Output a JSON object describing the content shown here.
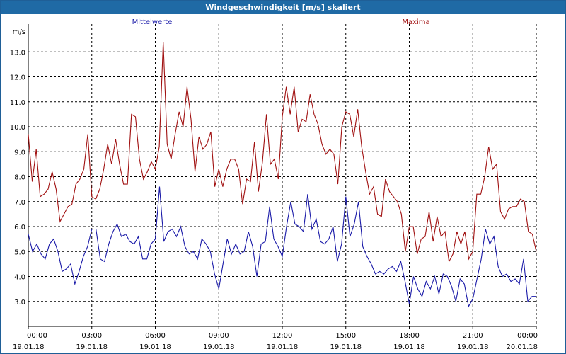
{
  "window": {
    "title": "Windgeschwindigkeit [m/s] skaliert"
  },
  "colors": {
    "mittelwerte": "#1a1aa8",
    "maxima": "#a01010",
    "titlebar": "#1f6aa5"
  },
  "chart_data": {
    "type": "line",
    "title": "Windgeschwindigkeit [m/s] skaliert",
    "ylabel": "m/s",
    "ylim": [
      2.0,
      14.0
    ],
    "y_ticks": [
      "3.0",
      "4.0",
      "5.0",
      "6.0",
      "7.0",
      "8.0",
      "9.0",
      "10.0",
      "11.0",
      "12.0",
      "13.0"
    ],
    "x_ticks": [
      {
        "time": "00:00",
        "date": "19.01.18"
      },
      {
        "time": "03:00",
        "date": "19.01.18"
      },
      {
        "time": "06:00",
        "date": "19.01.18"
      },
      {
        "time": "09:00",
        "date": "19.01.18"
      },
      {
        "time": "12:00",
        "date": "19.01.18"
      },
      {
        "time": "15:00",
        "date": "19.01.18"
      },
      {
        "time": "18:00",
        "date": "19.01.18"
      },
      {
        "time": "21:00",
        "date": "19.01.18"
      },
      {
        "time": "00:00",
        "date": "20.01.18"
      }
    ],
    "grid": true,
    "x_unit": "hours",
    "series": [
      {
        "name": "Mittelwerte",
        "points": [
          [
            0,
            5.7
          ],
          [
            0.2,
            5.0
          ],
          [
            0.4,
            5.3
          ],
          [
            0.6,
            4.9
          ],
          [
            0.8,
            4.7
          ],
          [
            1.0,
            5.3
          ],
          [
            1.2,
            5.5
          ],
          [
            1.4,
            5.0
          ],
          [
            1.6,
            4.2
          ],
          [
            1.8,
            4.3
          ],
          [
            2.0,
            4.5
          ],
          [
            2.2,
            3.7
          ],
          [
            2.4,
            4.2
          ],
          [
            2.6,
            4.8
          ],
          [
            2.8,
            5.2
          ],
          [
            3.0,
            5.9
          ],
          [
            3.2,
            5.9
          ],
          [
            3.4,
            4.7
          ],
          [
            3.6,
            4.6
          ],
          [
            3.8,
            5.3
          ],
          [
            4.0,
            5.8
          ],
          [
            4.2,
            6.1
          ],
          [
            4.4,
            5.6
          ],
          [
            4.6,
            5.7
          ],
          [
            4.8,
            5.4
          ],
          [
            5.0,
            5.3
          ],
          [
            5.2,
            5.6
          ],
          [
            5.4,
            4.7
          ],
          [
            5.6,
            4.7
          ],
          [
            5.8,
            5.3
          ],
          [
            6.0,
            5.5
          ],
          [
            6.2,
            7.6
          ],
          [
            6.4,
            5.4
          ],
          [
            6.6,
            5.8
          ],
          [
            6.8,
            5.9
          ],
          [
            7.0,
            5.6
          ],
          [
            7.2,
            6.0
          ],
          [
            7.4,
            5.2
          ],
          [
            7.6,
            4.9
          ],
          [
            7.8,
            5.0
          ],
          [
            8.0,
            4.7
          ],
          [
            8.2,
            5.5
          ],
          [
            8.4,
            5.3
          ],
          [
            8.6,
            5.0
          ],
          [
            8.8,
            4.1
          ],
          [
            9.0,
            3.5
          ],
          [
            9.2,
            4.5
          ],
          [
            9.4,
            5.5
          ],
          [
            9.6,
            4.9
          ],
          [
            9.8,
            5.3
          ],
          [
            10.0,
            4.9
          ],
          [
            10.2,
            5.0
          ],
          [
            10.4,
            5.8
          ],
          [
            10.6,
            5.2
          ],
          [
            10.8,
            4.0
          ],
          [
            11.0,
            5.3
          ],
          [
            11.2,
            5.4
          ],
          [
            11.4,
            6.8
          ],
          [
            11.6,
            5.5
          ],
          [
            11.8,
            5.2
          ],
          [
            12.0,
            4.8
          ],
          [
            12.2,
            6.0
          ],
          [
            12.4,
            7.0
          ],
          [
            12.6,
            6.1
          ],
          [
            12.8,
            6.0
          ],
          [
            13.0,
            5.8
          ],
          [
            13.2,
            7.3
          ],
          [
            13.4,
            5.9
          ],
          [
            13.6,
            6.3
          ],
          [
            13.8,
            5.4
          ],
          [
            14.0,
            5.3
          ],
          [
            14.2,
            5.5
          ],
          [
            14.4,
            6.0
          ],
          [
            14.6,
            4.6
          ],
          [
            14.8,
            5.3
          ],
          [
            15.0,
            7.2
          ],
          [
            15.2,
            5.6
          ],
          [
            15.4,
            6.1
          ],
          [
            15.6,
            7.0
          ],
          [
            15.8,
            5.2
          ],
          [
            16.0,
            4.8
          ],
          [
            16.2,
            4.5
          ],
          [
            16.4,
            4.1
          ],
          [
            16.6,
            4.2
          ],
          [
            16.8,
            4.1
          ],
          [
            17.0,
            4.3
          ],
          [
            17.2,
            4.4
          ],
          [
            17.4,
            4.2
          ],
          [
            17.6,
            4.6
          ],
          [
            17.8,
            3.8
          ],
          [
            18.0,
            2.9
          ],
          [
            18.2,
            4.0
          ],
          [
            18.4,
            3.5
          ],
          [
            18.6,
            3.2
          ],
          [
            18.8,
            3.8
          ],
          [
            19.0,
            3.5
          ],
          [
            19.2,
            4.0
          ],
          [
            19.4,
            3.3
          ],
          [
            19.6,
            4.1
          ],
          [
            19.8,
            4.0
          ],
          [
            20.0,
            3.6
          ],
          [
            20.2,
            3.0
          ],
          [
            20.4,
            3.9
          ],
          [
            20.6,
            3.7
          ],
          [
            20.8,
            2.8
          ],
          [
            21.0,
            3.1
          ],
          [
            21.2,
            3.9
          ],
          [
            21.4,
            4.7
          ],
          [
            21.6,
            5.9
          ],
          [
            21.8,
            5.3
          ],
          [
            22.0,
            5.6
          ],
          [
            22.2,
            4.4
          ],
          [
            22.4,
            4.0
          ],
          [
            22.6,
            4.1
          ],
          [
            22.8,
            3.8
          ],
          [
            23.0,
            3.9
          ],
          [
            23.2,
            3.7
          ],
          [
            23.4,
            4.7
          ],
          [
            23.6,
            3.0
          ],
          [
            23.8,
            3.2
          ],
          [
            24.0,
            3.2
          ]
        ]
      },
      {
        "name": "Maxima",
        "points": [
          [
            0,
            9.7
          ],
          [
            0.2,
            7.8
          ],
          [
            0.4,
            9.1
          ],
          [
            0.6,
            7.2
          ],
          [
            0.8,
            7.3
          ],
          [
            1.0,
            7.5
          ],
          [
            1.2,
            8.2
          ],
          [
            1.4,
            7.5
          ],
          [
            1.6,
            6.2
          ],
          [
            1.8,
            6.5
          ],
          [
            2.0,
            6.8
          ],
          [
            2.2,
            6.9
          ],
          [
            2.4,
            7.7
          ],
          [
            2.6,
            7.9
          ],
          [
            2.8,
            8.3
          ],
          [
            3.0,
            9.7
          ],
          [
            3.2,
            7.2
          ],
          [
            3.4,
            7.1
          ],
          [
            3.6,
            7.5
          ],
          [
            3.8,
            8.3
          ],
          [
            4.0,
            9.3
          ],
          [
            4.2,
            8.5
          ],
          [
            4.4,
            9.5
          ],
          [
            4.6,
            8.5
          ],
          [
            4.8,
            7.7
          ],
          [
            5.0,
            7.7
          ],
          [
            5.2,
            10.5
          ],
          [
            5.4,
            10.4
          ],
          [
            5.6,
            8.7
          ],
          [
            5.8,
            7.9
          ],
          [
            6.0,
            8.2
          ],
          [
            6.2,
            8.6
          ],
          [
            6.4,
            8.3
          ],
          [
            6.6,
            9.2
          ],
          [
            6.8,
            13.4
          ],
          [
            7.0,
            9.3
          ],
          [
            7.2,
            8.7
          ],
          [
            7.4,
            9.7
          ],
          [
            7.6,
            10.6
          ],
          [
            7.8,
            10.0
          ],
          [
            8.0,
            11.6
          ],
          [
            8.2,
            10.3
          ],
          [
            8.4,
            8.2
          ],
          [
            8.6,
            9.6
          ],
          [
            8.8,
            9.1
          ],
          [
            9.0,
            9.3
          ],
          [
            9.2,
            9.8
          ],
          [
            9.4,
            7.6
          ],
          [
            9.6,
            8.3
          ],
          [
            9.8,
            7.6
          ],
          [
            10.0,
            8.3
          ],
          [
            10.2,
            8.7
          ],
          [
            10.4,
            8.7
          ],
          [
            10.6,
            8.3
          ],
          [
            10.8,
            6.9
          ],
          [
            11.0,
            7.9
          ],
          [
            11.2,
            7.8
          ],
          [
            11.4,
            9.4
          ],
          [
            11.6,
            7.4
          ],
          [
            11.8,
            8.6
          ],
          [
            12.0,
            10.5
          ],
          [
            12.2,
            8.5
          ],
          [
            12.4,
            8.7
          ],
          [
            12.6,
            7.9
          ],
          [
            12.8,
            10.4
          ],
          [
            13.0,
            11.6
          ],
          [
            13.2,
            10.5
          ],
          [
            13.4,
            11.6
          ],
          [
            13.6,
            9.8
          ],
          [
            13.8,
            10.3
          ],
          [
            14.0,
            10.2
          ],
          [
            14.2,
            11.3
          ],
          [
            14.4,
            10.5
          ],
          [
            14.6,
            10.1
          ],
          [
            14.8,
            9.3
          ],
          [
            15.0,
            8.9
          ],
          [
            15.2,
            9.1
          ],
          [
            15.4,
            8.9
          ],
          [
            15.6,
            7.7
          ],
          [
            15.8,
            10.0
          ],
          [
            16.0,
            10.6
          ],
          [
            16.2,
            10.5
          ],
          [
            16.4,
            9.6
          ],
          [
            16.6,
            10.7
          ],
          [
            16.8,
            9.2
          ],
          [
            17.0,
            8.2
          ],
          [
            17.2,
            7.3
          ],
          [
            17.4,
            7.6
          ],
          [
            17.6,
            6.5
          ],
          [
            17.8,
            6.4
          ],
          [
            18.0,
            7.9
          ],
          [
            18.2,
            7.4
          ],
          [
            18.4,
            7.2
          ],
          [
            18.6,
            7.0
          ],
          [
            18.8,
            6.5
          ],
          [
            19.0,
            5.0
          ],
          [
            19.2,
            6.0
          ],
          [
            19.4,
            6.0
          ],
          [
            19.6,
            4.9
          ],
          [
            19.8,
            5.5
          ],
          [
            20.0,
            5.6
          ],
          [
            20.2,
            6.6
          ],
          [
            20.4,
            5.4
          ],
          [
            20.6,
            6.4
          ],
          [
            20.8,
            5.6
          ],
          [
            21.0,
            5.8
          ],
          [
            21.2,
            4.6
          ],
          [
            21.4,
            4.9
          ],
          [
            21.6,
            5.8
          ],
          [
            21.8,
            5.3
          ],
          [
            22.0,
            5.8
          ],
          [
            22.2,
            4.7
          ],
          [
            22.4,
            5.0
          ],
          [
            22.6,
            7.3
          ],
          [
            22.8,
            7.3
          ],
          [
            23.0,
            8.0
          ],
          [
            23.2,
            9.2
          ],
          [
            23.4,
            8.3
          ],
          [
            23.6,
            8.5
          ],
          [
            23.8,
            6.6
          ],
          [
            24.0,
            6.3
          ],
          [
            24.2,
            6.7
          ],
          [
            24.4,
            6.8
          ],
          [
            24.6,
            6.8
          ],
          [
            24.8,
            7.1
          ],
          [
            25.0,
            7.0
          ],
          [
            25.2,
            5.8
          ],
          [
            25.4,
            5.7
          ],
          [
            25.6,
            5.0
          ]
        ]
      }
    ]
  }
}
